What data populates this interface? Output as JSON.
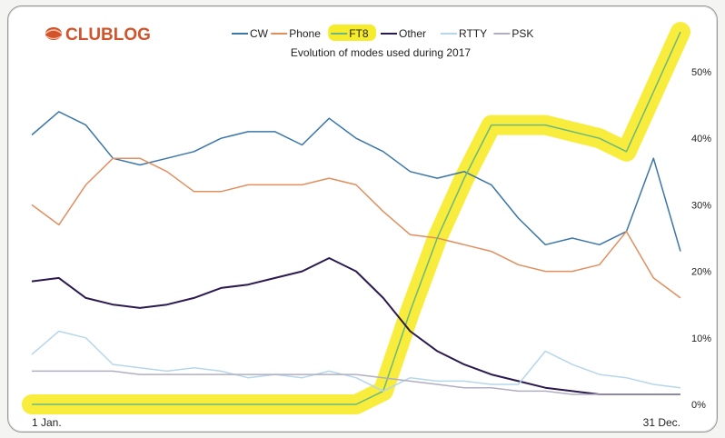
{
  "logo": {
    "text": "CLUBLOG",
    "color": "#d2542b"
  },
  "chart_data": {
    "type": "line",
    "title": "Evolution of modes used during 2017",
    "x_labels": [
      "1 Jan.",
      "31 Dec."
    ],
    "yticks": [
      "0%",
      "10%",
      "20%",
      "30%",
      "40%",
      "50%"
    ],
    "ylim": [
      0,
      57
    ],
    "grid": false,
    "legend_position": "top-center",
    "highlight": {
      "series": "FT8",
      "color": "#f7ec2b"
    },
    "x": [
      "Jan 1",
      "Jan 15",
      "Feb 1",
      "Feb 15",
      "Mar 1",
      "Mar 15",
      "Apr 1",
      "Apr 15",
      "May 1",
      "May 15",
      "Jun 1",
      "Jun 15",
      "Jul 1",
      "Jul 15",
      "Aug 1",
      "Aug 15",
      "Sep 1",
      "Sep 15",
      "Oct 1",
      "Oct 15",
      "Nov 1",
      "Nov 15",
      "Dec 1",
      "Dec 15",
      "Dec 31"
    ],
    "series": [
      {
        "name": "CW",
        "color": "#3a76a9",
        "values": [
          40.5,
          44,
          42,
          37,
          36,
          37,
          38,
          40,
          41,
          41,
          39,
          43,
          40,
          38,
          35,
          34,
          35,
          33,
          28,
          24,
          25,
          24,
          26,
          37,
          23
        ]
      },
      {
        "name": "Phone",
        "color": "#e08f5f",
        "values": [
          30,
          27,
          33,
          37,
          37,
          35,
          32,
          32,
          33,
          33,
          33,
          34,
          33,
          29,
          25.5,
          25,
          24,
          23,
          21,
          20,
          20,
          21,
          26,
          19,
          16
        ]
      },
      {
        "name": "FT8",
        "color": "#6cb87e",
        "values": [
          0,
          0,
          0,
          0,
          0,
          0,
          0,
          0,
          0,
          0,
          0,
          0,
          0,
          2,
          14,
          25,
          34,
          42,
          42,
          42,
          41,
          40,
          38,
          47,
          56
        ]
      },
      {
        "name": "Other",
        "color": "#2c1a4f",
        "values": [
          18.5,
          19,
          16,
          15,
          14.5,
          15,
          16,
          17.5,
          18,
          19,
          20,
          22,
          20,
          16,
          11,
          8,
          6,
          4.5,
          3.5,
          2.5,
          2,
          1.5,
          1.5,
          1.5,
          1.5
        ]
      },
      {
        "name": "RTTY",
        "color": "#b6d6ec",
        "values": [
          7.5,
          11,
          10,
          6,
          5.5,
          5,
          5.5,
          5,
          4,
          4.5,
          4,
          5,
          4,
          2,
          4,
          3.5,
          3.5,
          3,
          3,
          8,
          6,
          4.5,
          4,
          3,
          2.5
        ]
      },
      {
        "name": "PSK",
        "color": "#b1aec3",
        "values": [
          5,
          5,
          5,
          5,
          4.5,
          4.5,
          4.5,
          4.5,
          4.5,
          4.5,
          4.5,
          4.5,
          4.5,
          4,
          3.5,
          3,
          2.5,
          2.5,
          2,
          2,
          1.5,
          1.5,
          1.5,
          1.5,
          1.5
        ]
      }
    ]
  }
}
